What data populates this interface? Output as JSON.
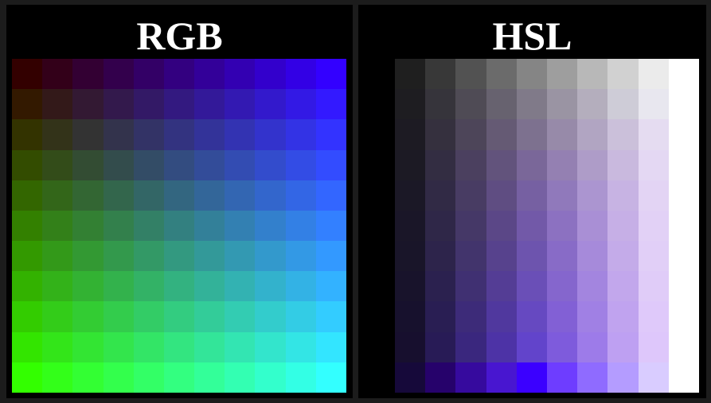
{
  "panels": {
    "rgb": {
      "title": "RGB",
      "colors": [
        [
          "#330000",
          "#330019",
          "#330033",
          "#33004c",
          "#330066",
          "#330080",
          "#330099",
          "#3300b2",
          "#3300cc",
          "#3300e5",
          "#3300ff"
        ],
        [
          "#331900",
          "#331919",
          "#331933",
          "#33194c",
          "#331966",
          "#331980",
          "#331999",
          "#3319b2",
          "#3319cc",
          "#3319e5",
          "#3319ff"
        ],
        [
          "#333300",
          "#333319",
          "#333333",
          "#33334c",
          "#333366",
          "#333380",
          "#333399",
          "#3333b2",
          "#3333cc",
          "#3333e5",
          "#3333ff"
        ],
        [
          "#334c00",
          "#334c19",
          "#334c33",
          "#334c4c",
          "#334c66",
          "#334c80",
          "#334c99",
          "#334cb2",
          "#334ccc",
          "#334ce5",
          "#334cff"
        ],
        [
          "#336600",
          "#336619",
          "#336633",
          "#33664c",
          "#336666",
          "#336680",
          "#336699",
          "#3366b2",
          "#3366cc",
          "#3366e5",
          "#3366ff"
        ],
        [
          "#338000",
          "#338019",
          "#338033",
          "#33804c",
          "#338066",
          "#338080",
          "#338099",
          "#3380b2",
          "#3380cc",
          "#3380e5",
          "#3380ff"
        ],
        [
          "#339900",
          "#339919",
          "#339933",
          "#33994c",
          "#339966",
          "#339980",
          "#339999",
          "#3399b2",
          "#3399cc",
          "#3399e5",
          "#3399ff"
        ],
        [
          "#33b200",
          "#33b219",
          "#33b233",
          "#33b24c",
          "#33b266",
          "#33b280",
          "#33b299",
          "#33b2b2",
          "#33b2cc",
          "#33b2e5",
          "#33b2ff"
        ],
        [
          "#33cc00",
          "#33cc19",
          "#33cc33",
          "#33cc4c",
          "#33cc66",
          "#33cc80",
          "#33cc99",
          "#33ccb2",
          "#33cccc",
          "#33cce5",
          "#33ccff"
        ],
        [
          "#33e500",
          "#33e519",
          "#33e533",
          "#33e54c",
          "#33e566",
          "#33e580",
          "#33e599",
          "#33e5b2",
          "#33e5cc",
          "#33e5e5",
          "#33e5ff"
        ],
        [
          "#33ff00",
          "#33ff19",
          "#33ff33",
          "#33ff4c",
          "#33ff66",
          "#33ff80",
          "#33ff99",
          "#33ffb2",
          "#33ffcc",
          "#33ffe5",
          "#33ffff"
        ]
      ]
    },
    "hsl": {
      "title": "HSL",
      "colors": [
        [
          "#1f1f1f",
          "#383838",
          "#525252",
          "#6b6b6b",
          "#858585",
          "#9e9e9e",
          "#b8b8b8",
          "#d1d1d1",
          "#ebebeb",
          "#ffffff"
        ],
        [
          "#1e1d21",
          "#36343b",
          "#4f4b55",
          "#67626f",
          "#807a89",
          "#9a94a3",
          "#b4aebd",
          "#ceccd7",
          "#e8e7ef",
          "#ffffff"
        ],
        [
          "#1d1b23",
          "#35303e",
          "#4d4559",
          "#655a74",
          "#7d718f",
          "#978aa9",
          "#b1a5c2",
          "#cbc0da",
          "#e5dcf1",
          "#ffffff"
        ],
        [
          "#1c1a24",
          "#332d42",
          "#4b405f",
          "#62537c",
          "#7a6799",
          "#9480b2",
          "#ae9cc8",
          "#c9b9de",
          "#e4d8f3",
          "#ffffff"
        ],
        [
          "#1b1826",
          "#312a45",
          "#483c63",
          "#5f4d82",
          "#7660a2",
          "#9079bb",
          "#ab95d0",
          "#c7b3e3",
          "#e3d4f4",
          "#ffffff"
        ],
        [
          "#1a1628",
          "#2f2748",
          "#453867",
          "#5b4787",
          "#7259a8",
          "#8c71c1",
          "#a98fd5",
          "#c6afe6",
          "#e2d1f6",
          "#ffffff"
        ],
        [
          "#191529",
          "#2d244b",
          "#42346c",
          "#57428d",
          "#6d54ae",
          "#886bc7",
          "#a68ada",
          "#c4abe9",
          "#e1cff7",
          "#ffffff"
        ],
        [
          "#18132b",
          "#2b214f",
          "#403072",
          "#543d95",
          "#6a4fb7",
          "#8566cd",
          "#a385df",
          "#c2a7ec",
          "#e0ccf8",
          "#ffffff"
        ],
        [
          "#17112d",
          "#291e53",
          "#3d2b79",
          "#50389e",
          "#6649c1",
          "#8260d5",
          "#a080e4",
          "#c0a3ef",
          "#dfc9fa",
          "#ffffff"
        ],
        [
          "#170f2e",
          "#281b56",
          "#3a277e",
          "#4d33a6",
          "#6244cb",
          "#7e5bdc",
          "#9d7be9",
          "#bea0f2",
          "#dec7fb",
          "#ffffff"
        ],
        [
          "#16093a",
          "#26026b",
          "#360a9e",
          "#4816d0",
          "#3b00ff",
          "#6e3dff",
          "#8f6bff",
          "#b49cff",
          "#d9ccff",
          "#ffffff"
        ]
      ]
    }
  }
}
